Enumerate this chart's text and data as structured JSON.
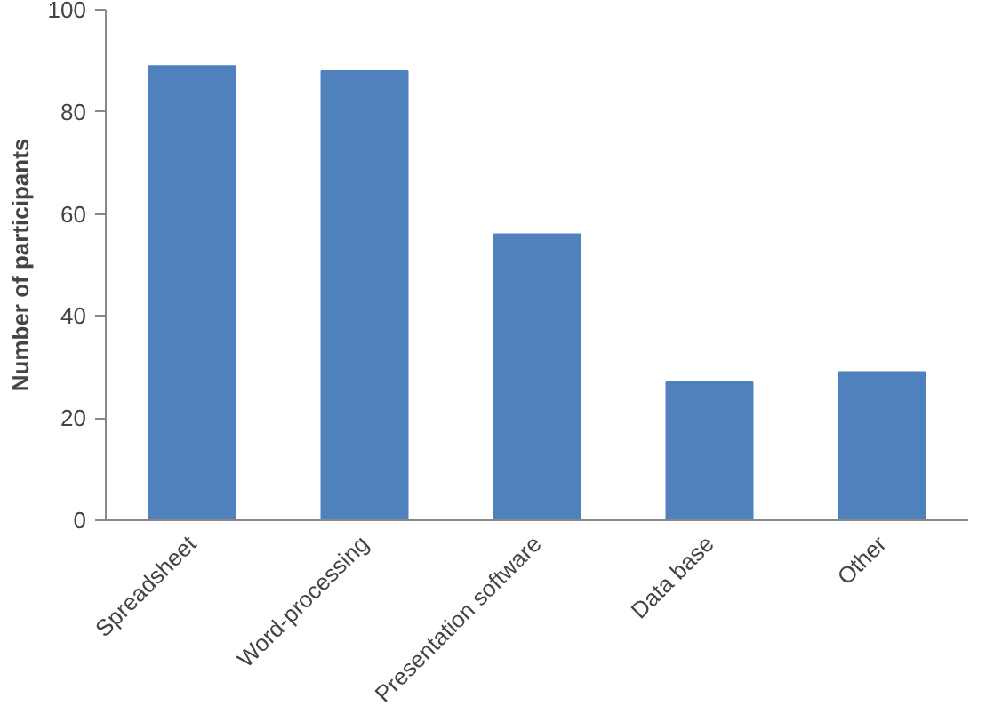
{
  "chart_data": {
    "type": "bar",
    "ylabel": "Number of participants",
    "categories": [
      "Spreadsheet",
      "Word-processing",
      "Presentation software",
      "Data base",
      "Other"
    ],
    "values": [
      89,
      88,
      56,
      27,
      29
    ],
    "color": "#4f81bd",
    "ylim": [
      0,
      100
    ],
    "yticks": [
      0,
      20,
      40,
      60,
      80,
      100
    ],
    "grid": false
  }
}
